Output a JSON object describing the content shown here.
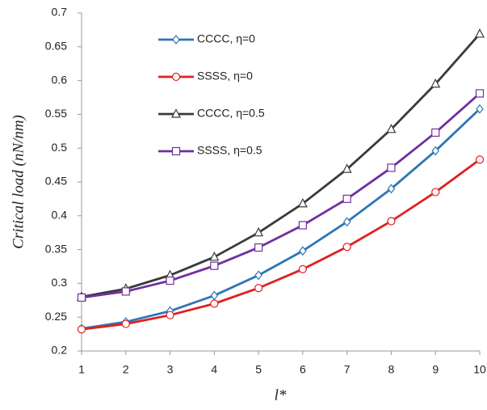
{
  "chart_data": {
    "type": "line",
    "x_label": "l*",
    "y_label": "Critical load (nN/nm)",
    "x": [
      1,
      2,
      3,
      4,
      5,
      6,
      7,
      8,
      9,
      10
    ],
    "series": [
      {
        "name": "CCCC, η=0",
        "color": "#2e75b6",
        "marker": "diamond",
        "values": [
          0.233,
          0.243,
          0.259,
          0.282,
          0.312,
          0.348,
          0.391,
          0.44,
          0.496,
          0.558
        ]
      },
      {
        "name": "SSSS, η=0",
        "color": "#e02020",
        "marker": "circle",
        "values": [
          0.232,
          0.24,
          0.253,
          0.27,
          0.293,
          0.321,
          0.354,
          0.392,
          0.435,
          0.483
        ]
      },
      {
        "name": "CCCC, η=0.5",
        "color": "#3a3a3a",
        "marker": "triangle",
        "values": [
          0.28,
          0.292,
          0.312,
          0.339,
          0.375,
          0.418,
          0.469,
          0.528,
          0.595,
          0.669
        ]
      },
      {
        "name": "SSSS, η=0.5",
        "color": "#7030a0",
        "marker": "square",
        "values": [
          0.279,
          0.288,
          0.304,
          0.326,
          0.353,
          0.386,
          0.425,
          0.471,
          0.523,
          0.581
        ]
      }
    ],
    "xlim": [
      1,
      10
    ],
    "xticks": [
      1,
      2,
      3,
      4,
      5,
      6,
      7,
      8,
      9,
      10
    ],
    "ylim": [
      0.2,
      0.7
    ],
    "yticks": [
      0.2,
      0.25,
      0.3,
      0.35,
      0.4,
      0.45,
      0.5,
      0.55,
      0.6,
      0.65,
      0.7
    ],
    "grid": false,
    "legend": "upper left"
  }
}
